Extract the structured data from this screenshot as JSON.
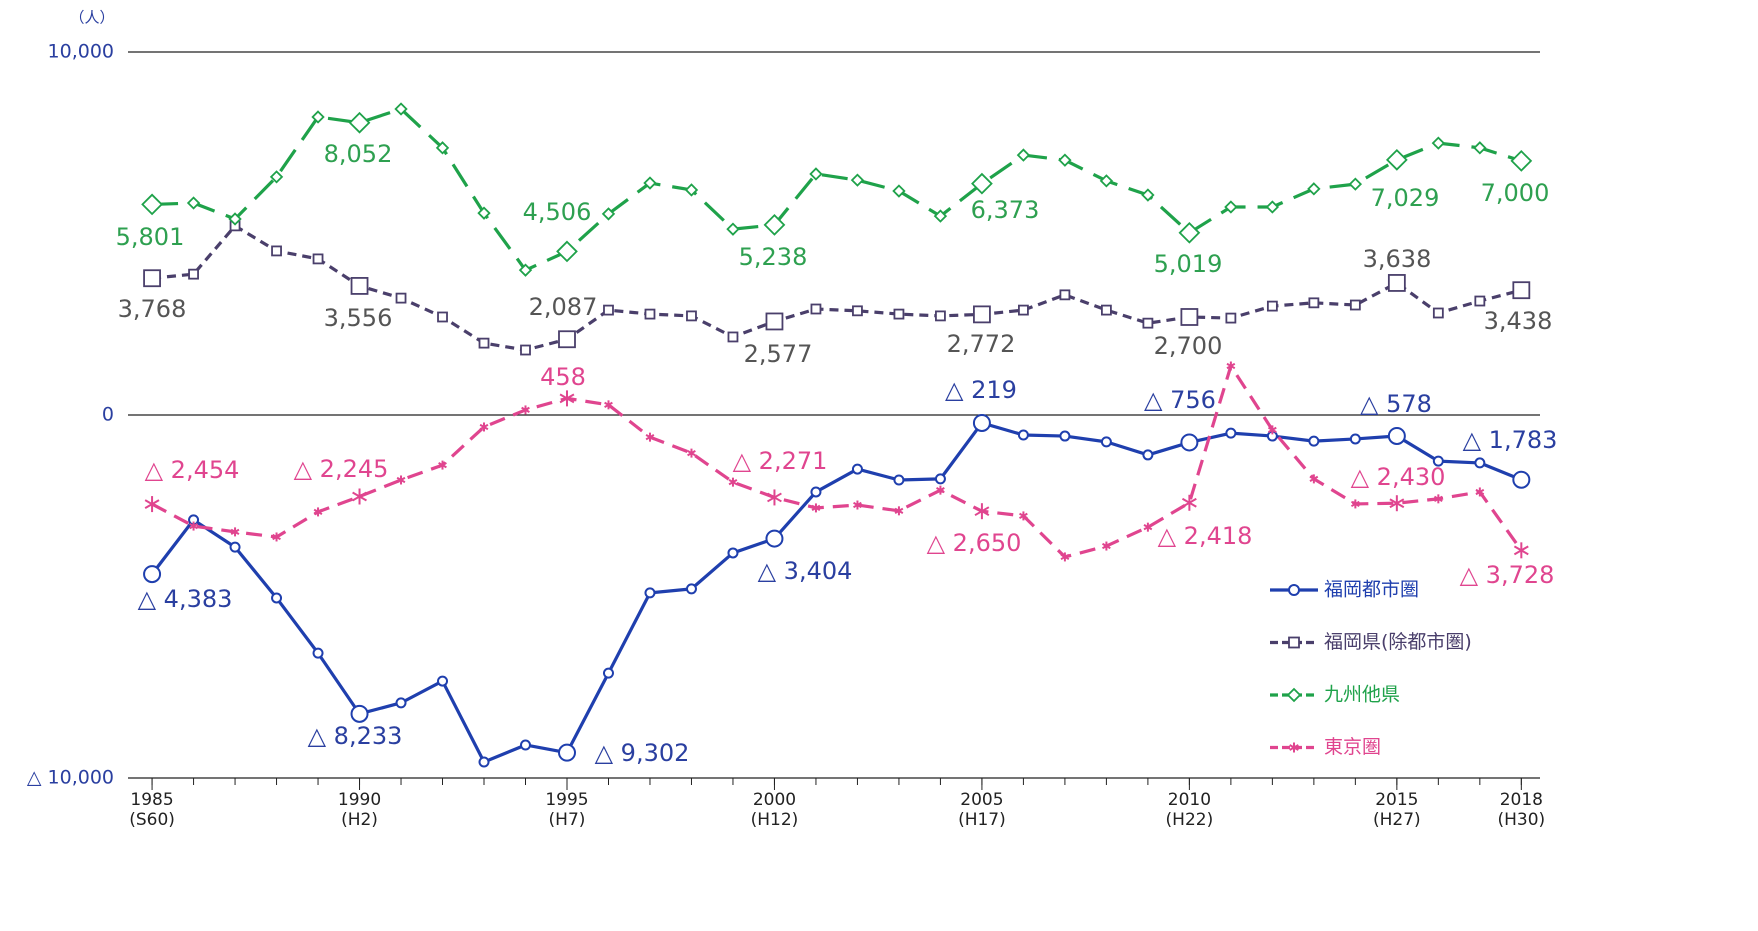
{
  "chart_data": {
    "type": "line",
    "unit_label": "（人）",
    "x": [
      1985,
      1986,
      1987,
      1988,
      1989,
      1990,
      1991,
      1992,
      1993,
      1994,
      1995,
      1996,
      1997,
      1998,
      1999,
      2000,
      2001,
      2002,
      2003,
      2004,
      2005,
      2006,
      2007,
      2008,
      2009,
      2010,
      2011,
      2012,
      2013,
      2014,
      2015,
      2016,
      2017,
      2018
    ],
    "xlim": [
      1984.42,
      2018.45
    ],
    "xticks": [
      {
        "value": 1985,
        "label": "1985",
        "sublabel": "(S60)"
      },
      {
        "value": 1990,
        "label": "1990",
        "sublabel": "(H2)"
      },
      {
        "value": 1995,
        "label": "1995",
        "sublabel": "(H7)"
      },
      {
        "value": 2000,
        "label": "2000",
        "sublabel": "(H12)"
      },
      {
        "value": 2005,
        "label": "2005",
        "sublabel": "(H17)"
      },
      {
        "value": 2010,
        "label": "2010",
        "sublabel": "(H22)"
      },
      {
        "value": 2015,
        "label": "2015",
        "sublabel": "(H27)"
      },
      {
        "value": 2018,
        "label": "2018",
        "sublabel": "(H30)"
      }
    ],
    "ylim": [
      -10000,
      10000
    ],
    "yticks": [
      {
        "value": -10000,
        "label": "△ 10,000"
      },
      0,
      {
        "value": 10000,
        "label": "10,000"
      }
    ],
    "legend_position": "lower right",
    "series": [
      {
        "name": "福岡都市圏",
        "color": "#1f3fae",
        "marker": "circle",
        "dash": "solid",
        "values": [
          -4383,
          -2890,
          -3640,
          -5040,
          -6560,
          -8233,
          -7930,
          -7330,
          -9560,
          -9090,
          -9302,
          -7110,
          -4900,
          -4790,
          -3800,
          -3404,
          -2120,
          -1490,
          -1790,
          -1760,
          -219,
          -550,
          -580,
          -740,
          -1100,
          -756,
          -500,
          -580,
          -720,
          -660,
          -578,
          -1270,
          -1320,
          -1783
        ],
        "value_labels": [
          "△ 4,383",
          null,
          null,
          null,
          null,
          "△ 8,233",
          null,
          null,
          null,
          null,
          "△ 9,302",
          null,
          null,
          null,
          null,
          "△ 3,404",
          null,
          null,
          null,
          null,
          "△ 219",
          null,
          null,
          null,
          null,
          "△ 756",
          null,
          null,
          null,
          null,
          "△ 578",
          null,
          null,
          "△ 1,783"
        ]
      },
      {
        "name": "福岡県(除都市圏)",
        "color": "#4a3f6b",
        "marker": "square",
        "dash": "short",
        "values": [
          3768,
          3880,
          5210,
          4520,
          4300,
          3556,
          3220,
          2700,
          1980,
          1790,
          2087,
          2890,
          2780,
          2730,
          2150,
          2577,
          2920,
          2870,
          2780,
          2730,
          2772,
          2890,
          3310,
          2890,
          2530,
          2700,
          2670,
          3000,
          3090,
          3030,
          3638,
          2810,
          3140,
          3438
        ],
        "value_labels": [
          "3,768",
          null,
          null,
          null,
          null,
          "3,556",
          null,
          null,
          null,
          null,
          "2,087",
          null,
          null,
          null,
          null,
          "2,577",
          null,
          null,
          null,
          null,
          "2,772",
          null,
          null,
          null,
          null,
          "2,700",
          null,
          null,
          null,
          null,
          "3,638",
          null,
          null,
          "3,438"
        ]
      },
      {
        "name": "九州他県",
        "color": "#1fa24a",
        "marker": "diamond",
        "dash": "long",
        "values": [
          5801,
          5840,
          5400,
          6560,
          8210,
          8052,
          8430,
          7360,
          5560,
          3990,
          4506,
          5540,
          6390,
          6200,
          5120,
          5238,
          6640,
          6470,
          6170,
          5480,
          6373,
          7160,
          7020,
          6450,
          6060,
          5019,
          5730,
          5730,
          6230,
          6360,
          7029,
          7490,
          7360,
          7000
        ],
        "value_labels": [
          "5,801",
          null,
          null,
          null,
          null,
          "8,052",
          null,
          null,
          null,
          null,
          "4,506",
          null,
          null,
          null,
          null,
          "5,238",
          null,
          null,
          null,
          null,
          "6,373",
          null,
          null,
          null,
          null,
          "5,019",
          null,
          null,
          null,
          null,
          "7,029",
          null,
          null,
          "7,000"
        ]
      },
      {
        "name": "東京圏",
        "color": "#e0458f",
        "marker": "asterisk",
        "dash": "medium",
        "values": [
          -2454,
          -3060,
          -3220,
          -3360,
          -2670,
          -2245,
          -1790,
          -1380,
          -330,
          140,
          458,
          280,
          -610,
          -1050,
          -1850,
          -2271,
          -2560,
          -2480,
          -2640,
          -2070,
          -2650,
          -2780,
          -3910,
          -3610,
          -3090,
          -2418,
          1350,
          -410,
          -1760,
          -2450,
          -2430,
          -2310,
          -2120,
          -3728
        ],
        "value_labels": [
          "△ 2,454",
          null,
          null,
          null,
          null,
          "△ 2,245",
          null,
          null,
          null,
          null,
          "458",
          null,
          null,
          null,
          null,
          "△ 2,271",
          null,
          null,
          null,
          null,
          "△ 2,650",
          null,
          null,
          null,
          null,
          "△ 2,418",
          null,
          null,
          null,
          null,
          "△ 2,430",
          null,
          null,
          "△ 3,728"
        ]
      }
    ]
  }
}
